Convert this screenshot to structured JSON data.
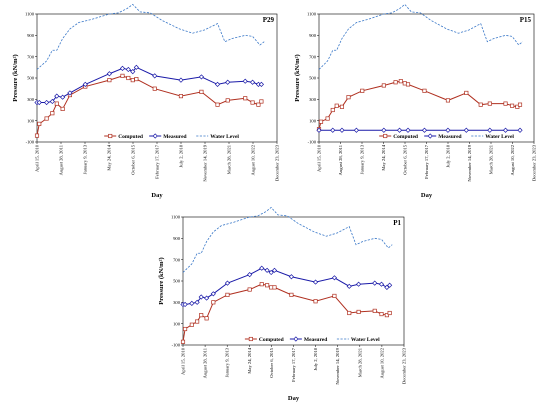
{
  "chart_data": [
    {
      "type": "line",
      "panel_label": "P29",
      "ylabel": "Pressure (kN/m²)",
      "xlabel": "Day",
      "ylim": [
        -100,
        1100
      ],
      "yticks": [
        -100,
        100,
        300,
        500,
        700,
        900,
        1100
      ],
      "ytick_labels": [
        "-100",
        "100",
        "300",
        "500",
        "700",
        "900",
        "1100"
      ],
      "xlim": [
        "2010-04-15",
        "2023-12-23"
      ],
      "xtick_dates": [
        "2010-04-15",
        "2011-08-28",
        "2013-01-09",
        "2014-05-24",
        "2015-10-06",
        "2017-02-17",
        "2018-07-02",
        "2019-11-14",
        "2021-03-28",
        "2022-08-10",
        "2023-12-23"
      ],
      "xtick_labels": [
        "April 15, 2010",
        "August 28, 2011",
        "January 9, 2013",
        "May 24, 2014",
        "October 6, 2015",
        "February 17, 2017",
        "July 2, 2018",
        "November 14, 2019",
        "March 28, 2021",
        "August 10, 2022",
        "December 23, 2023"
      ],
      "legend": [
        "Computed",
        "Measured",
        "Water Level"
      ],
      "legend_position": "bottom",
      "series": [
        {
          "name": "Computed",
          "color": "#b03020",
          "marker": "square",
          "points": [
            [
              "2010-04-15",
              -40
            ],
            [
              "2010-06-01",
              70
            ],
            [
              "2010-11-01",
              120
            ],
            [
              "2011-03-01",
              170
            ],
            [
              "2011-06-01",
              260
            ],
            [
              "2011-10-01",
              210
            ],
            [
              "2012-03-01",
              340
            ],
            [
              "2013-01-15",
              420
            ],
            [
              "2014-06-01",
              480
            ],
            [
              "2015-03-01",
              520
            ],
            [
              "2015-07-01",
              500
            ],
            [
              "2015-10-01",
              480
            ],
            [
              "2015-12-15",
              490
            ],
            [
              "2017-01-01",
              400
            ],
            [
              "2018-07-01",
              330
            ],
            [
              "2019-09-01",
              370
            ],
            [
              "2020-08-01",
              250
            ],
            [
              "2021-03-01",
              290
            ],
            [
              "2022-03-01",
              310
            ],
            [
              "2022-08-01",
              270
            ],
            [
              "2022-12-01",
              250
            ],
            [
              "2023-02-01",
              280
            ]
          ]
        },
        {
          "name": "Measured",
          "color": "#1a1aa8",
          "marker": "diamond",
          "points": [
            [
              "2010-04-15",
              270
            ],
            [
              "2010-06-01",
              270
            ],
            [
              "2010-11-01",
              270
            ],
            [
              "2011-03-01",
              280
            ],
            [
              "2011-06-01",
              330
            ],
            [
              "2011-10-01",
              320
            ],
            [
              "2012-03-01",
              360
            ],
            [
              "2013-01-15",
              440
            ],
            [
              "2014-06-01",
              540
            ],
            [
              "2015-03-01",
              590
            ],
            [
              "2015-07-01",
              580
            ],
            [
              "2015-10-01",
              560
            ],
            [
              "2015-12-15",
              600
            ],
            [
              "2017-01-01",
              520
            ],
            [
              "2018-07-01",
              480
            ],
            [
              "2019-09-01",
              510
            ],
            [
              "2020-08-01",
              440
            ],
            [
              "2021-03-01",
              460
            ],
            [
              "2022-03-01",
              470
            ],
            [
              "2022-08-01",
              460
            ],
            [
              "2022-12-01",
              440
            ],
            [
              "2023-02-01",
              440
            ]
          ]
        },
        {
          "name": "Water Level",
          "color": "#3a78c8",
          "dashed": true,
          "points": [
            [
              "2010-04-15",
              580
            ],
            [
              "2010-11-01",
              660
            ],
            [
              "2011-03-01",
              760
            ],
            [
              "2011-06-01",
              760
            ],
            [
              "2011-10-01",
              870
            ],
            [
              "2012-03-01",
              960
            ],
            [
              "2012-09-01",
              1020
            ],
            [
              "2013-06-01",
              1050
            ],
            [
              "2014-06-01",
              1100
            ],
            [
              "2014-12-01",
              1110
            ],
            [
              "2015-06-01",
              1150
            ],
            [
              "2015-10-01",
              1190
            ],
            [
              "2016-03-01",
              1120
            ],
            [
              "2016-10-01",
              1110
            ],
            [
              "2017-06-01",
              1040
            ],
            [
              "2018-06-01",
              960
            ],
            [
              "2019-03-01",
              920
            ],
            [
              "2019-11-01",
              950
            ],
            [
              "2020-08-01",
              1010
            ],
            [
              "2021-01-01",
              840
            ],
            [
              "2021-06-01",
              870
            ],
            [
              "2022-03-01",
              900
            ],
            [
              "2022-08-01",
              890
            ],
            [
              "2023-01-01",
              810
            ],
            [
              "2023-04-01",
              840
            ]
          ]
        }
      ]
    },
    {
      "type": "line",
      "panel_label": "P15",
      "ylabel": "Pressure (kN/m²)",
      "xlabel": "Day",
      "ylim": [
        -100,
        1100
      ],
      "yticks": [
        -100,
        100,
        300,
        500,
        700,
        900,
        1100
      ],
      "ytick_labels": [
        "-100",
        "100",
        "300",
        "500",
        "700",
        "900",
        "1100"
      ],
      "xlim": [
        "2010-04-15",
        "2023-12-23"
      ],
      "xtick_dates": [
        "2010-04-15",
        "2011-08-28",
        "2013-01-09",
        "2014-05-24",
        "2015-10-06",
        "2017-02-17",
        "2018-07-02",
        "2019-11-14",
        "2021-03-28",
        "2022-08-10",
        "2023-12-23"
      ],
      "xtick_labels": [
        "April 15, 2010",
        "August 28, 2011",
        "January 9, 2013",
        "May 24, 2014",
        "October 6, 2015",
        "February 17, 2017",
        "July 2, 2018",
        "November 14, 2019",
        "March 28, 2021",
        "August 10, 2022",
        "December 23, 2023"
      ],
      "legend": [
        "Computed",
        "Measured",
        "Water Level"
      ],
      "legend_position": "bottom",
      "series": [
        {
          "name": "Computed",
          "color": "#b03020",
          "marker": "square",
          "points": [
            [
              "2010-04-15",
              20
            ],
            [
              "2010-06-01",
              90
            ],
            [
              "2010-11-01",
              120
            ],
            [
              "2011-03-01",
              200
            ],
            [
              "2011-06-01",
              240
            ],
            [
              "2011-10-01",
              230
            ],
            [
              "2012-03-01",
              320
            ],
            [
              "2013-01-15",
              380
            ],
            [
              "2014-06-01",
              430
            ],
            [
              "2015-03-01",
              460
            ],
            [
              "2015-07-01",
              470
            ],
            [
              "2015-10-01",
              450
            ],
            [
              "2015-12-15",
              440
            ],
            [
              "2017-01-01",
              380
            ],
            [
              "2018-07-01",
              290
            ],
            [
              "2019-09-01",
              360
            ],
            [
              "2020-08-01",
              250
            ],
            [
              "2021-03-01",
              260
            ],
            [
              "2022-03-01",
              260
            ],
            [
              "2022-08-01",
              240
            ],
            [
              "2022-12-01",
              230
            ],
            [
              "2023-02-01",
              250
            ]
          ]
        },
        {
          "name": "Measured",
          "color": "#1a1aa8",
          "marker": "diamond",
          "points": [
            [
              "2010-04-15",
              10
            ],
            [
              "2011-03-01",
              10
            ],
            [
              "2011-10-01",
              10
            ],
            [
              "2012-09-01",
              10
            ],
            [
              "2014-06-01",
              10
            ],
            [
              "2015-06-01",
              10
            ],
            [
              "2015-12-15",
              10
            ],
            [
              "2017-01-01",
              10
            ],
            [
              "2018-07-01",
              10
            ],
            [
              "2019-09-01",
              10
            ],
            [
              "2021-03-01",
              10
            ],
            [
              "2022-03-01",
              10
            ],
            [
              "2023-02-01",
              10
            ]
          ]
        },
        {
          "name": "Water Level",
          "color": "#3a78c8",
          "dashed": true,
          "points": [
            [
              "2010-04-15",
              580
            ],
            [
              "2010-11-01",
              660
            ],
            [
              "2011-03-01",
              760
            ],
            [
              "2011-06-01",
              760
            ],
            [
              "2011-10-01",
              870
            ],
            [
              "2012-03-01",
              960
            ],
            [
              "2012-09-01",
              1020
            ],
            [
              "2013-06-01",
              1050
            ],
            [
              "2014-06-01",
              1100
            ],
            [
              "2014-12-01",
              1110
            ],
            [
              "2015-06-01",
              1150
            ],
            [
              "2015-10-01",
              1190
            ],
            [
              "2016-03-01",
              1120
            ],
            [
              "2016-10-01",
              1110
            ],
            [
              "2017-06-01",
              1040
            ],
            [
              "2018-06-01",
              960
            ],
            [
              "2019-03-01",
              920
            ],
            [
              "2019-11-01",
              950
            ],
            [
              "2020-08-01",
              1010
            ],
            [
              "2021-01-01",
              840
            ],
            [
              "2021-06-01",
              870
            ],
            [
              "2022-03-01",
              900
            ],
            [
              "2022-08-01",
              890
            ],
            [
              "2023-01-01",
              810
            ],
            [
              "2023-04-01",
              840
            ]
          ]
        }
      ]
    },
    {
      "type": "line",
      "panel_label": "P1",
      "ylabel": "Pressure (kN/m²)",
      "xlabel": "Day",
      "ylim": [
        -100,
        1100
      ],
      "yticks": [
        -100,
        100,
        300,
        500,
        700,
        900,
        1100
      ],
      "ytick_labels": [
        "-100",
        "100",
        "300",
        "500",
        "700",
        "900",
        "1100"
      ],
      "xlim": [
        "2010-04-15",
        "2023-12-23"
      ],
      "xtick_dates": [
        "2010-04-15",
        "2011-08-28",
        "2013-01-09",
        "2014-05-24",
        "2015-10-06",
        "2017-02-17",
        "2018-07-02",
        "2019-11-14",
        "2021-03-28",
        "2022-08-10",
        "2023-12-23"
      ],
      "xtick_labels": [
        "April 15, 2010",
        "August 28, 2011",
        "January 9, 2013",
        "May 24, 2014",
        "October 6, 2015",
        "February 17, 2017",
        "July 2, 2018",
        "November 14, 2019",
        "March 28, 2021",
        "August 10, 2022",
        "December 23, 2023"
      ],
      "legend": [
        "Computed",
        "Measured",
        "Water Level"
      ],
      "legend_position": "bottom",
      "series": [
        {
          "name": "Computed",
          "color": "#b03020",
          "marker": "square",
          "points": [
            [
              "2010-04-15",
              -70
            ],
            [
              "2010-06-01",
              50
            ],
            [
              "2010-11-01",
              90
            ],
            [
              "2011-03-01",
              120
            ],
            [
              "2011-06-01",
              180
            ],
            [
              "2011-10-01",
              150
            ],
            [
              "2012-03-01",
              300
            ],
            [
              "2013-01-15",
              370
            ],
            [
              "2014-06-01",
              420
            ],
            [
              "2015-03-01",
              470
            ],
            [
              "2015-07-01",
              460
            ],
            [
              "2015-10-01",
              440
            ],
            [
              "2015-12-15",
              440
            ],
            [
              "2017-01-01",
              370
            ],
            [
              "2018-07-01",
              310
            ],
            [
              "2019-09-01",
              360
            ],
            [
              "2020-08-01",
              200
            ],
            [
              "2021-03-01",
              210
            ],
            [
              "2022-03-01",
              220
            ],
            [
              "2022-08-01",
              190
            ],
            [
              "2022-12-01",
              180
            ],
            [
              "2023-02-01",
              200
            ]
          ]
        },
        {
          "name": "Measured",
          "color": "#1a1aa8",
          "marker": "diamond",
          "points": [
            [
              "2010-04-15",
              280
            ],
            [
              "2010-06-01",
              280
            ],
            [
              "2010-11-01",
              290
            ],
            [
              "2011-03-01",
              300
            ],
            [
              "2011-06-01",
              350
            ],
            [
              "2011-10-01",
              340
            ],
            [
              "2012-03-01",
              380
            ],
            [
              "2013-01-15",
              480
            ],
            [
              "2014-06-01",
              560
            ],
            [
              "2015-03-01",
              620
            ],
            [
              "2015-07-01",
              600
            ],
            [
              "2015-10-01",
              580
            ],
            [
              "2015-12-15",
              600
            ],
            [
              "2017-01-01",
              540
            ],
            [
              "2018-07-01",
              490
            ],
            [
              "2019-09-01",
              530
            ],
            [
              "2020-08-01",
              450
            ],
            [
              "2021-03-01",
              470
            ],
            [
              "2022-03-01",
              480
            ],
            [
              "2022-08-01",
              470
            ],
            [
              "2022-12-01",
              440
            ],
            [
              "2023-02-01",
              460
            ]
          ]
        },
        {
          "name": "Water Level",
          "color": "#3a78c8",
          "dashed": true,
          "points": [
            [
              "2010-04-15",
              580
            ],
            [
              "2010-11-01",
              660
            ],
            [
              "2011-03-01",
              760
            ],
            [
              "2011-06-01",
              760
            ],
            [
              "2011-10-01",
              870
            ],
            [
              "2012-03-01",
              960
            ],
            [
              "2012-09-01",
              1020
            ],
            [
              "2013-06-01",
              1050
            ],
            [
              "2014-06-01",
              1100
            ],
            [
              "2014-12-01",
              1110
            ],
            [
              "2015-06-01",
              1150
            ],
            [
              "2015-10-01",
              1190
            ],
            [
              "2016-03-01",
              1120
            ],
            [
              "2016-10-01",
              1110
            ],
            [
              "2017-06-01",
              1040
            ],
            [
              "2018-06-01",
              960
            ],
            [
              "2019-03-01",
              920
            ],
            [
              "2019-11-01",
              950
            ],
            [
              "2020-08-01",
              1010
            ],
            [
              "2021-01-01",
              840
            ],
            [
              "2021-06-01",
              870
            ],
            [
              "2022-03-01",
              900
            ],
            [
              "2022-08-01",
              890
            ],
            [
              "2023-01-01",
              810
            ],
            [
              "2023-04-01",
              840
            ]
          ]
        }
      ]
    }
  ]
}
